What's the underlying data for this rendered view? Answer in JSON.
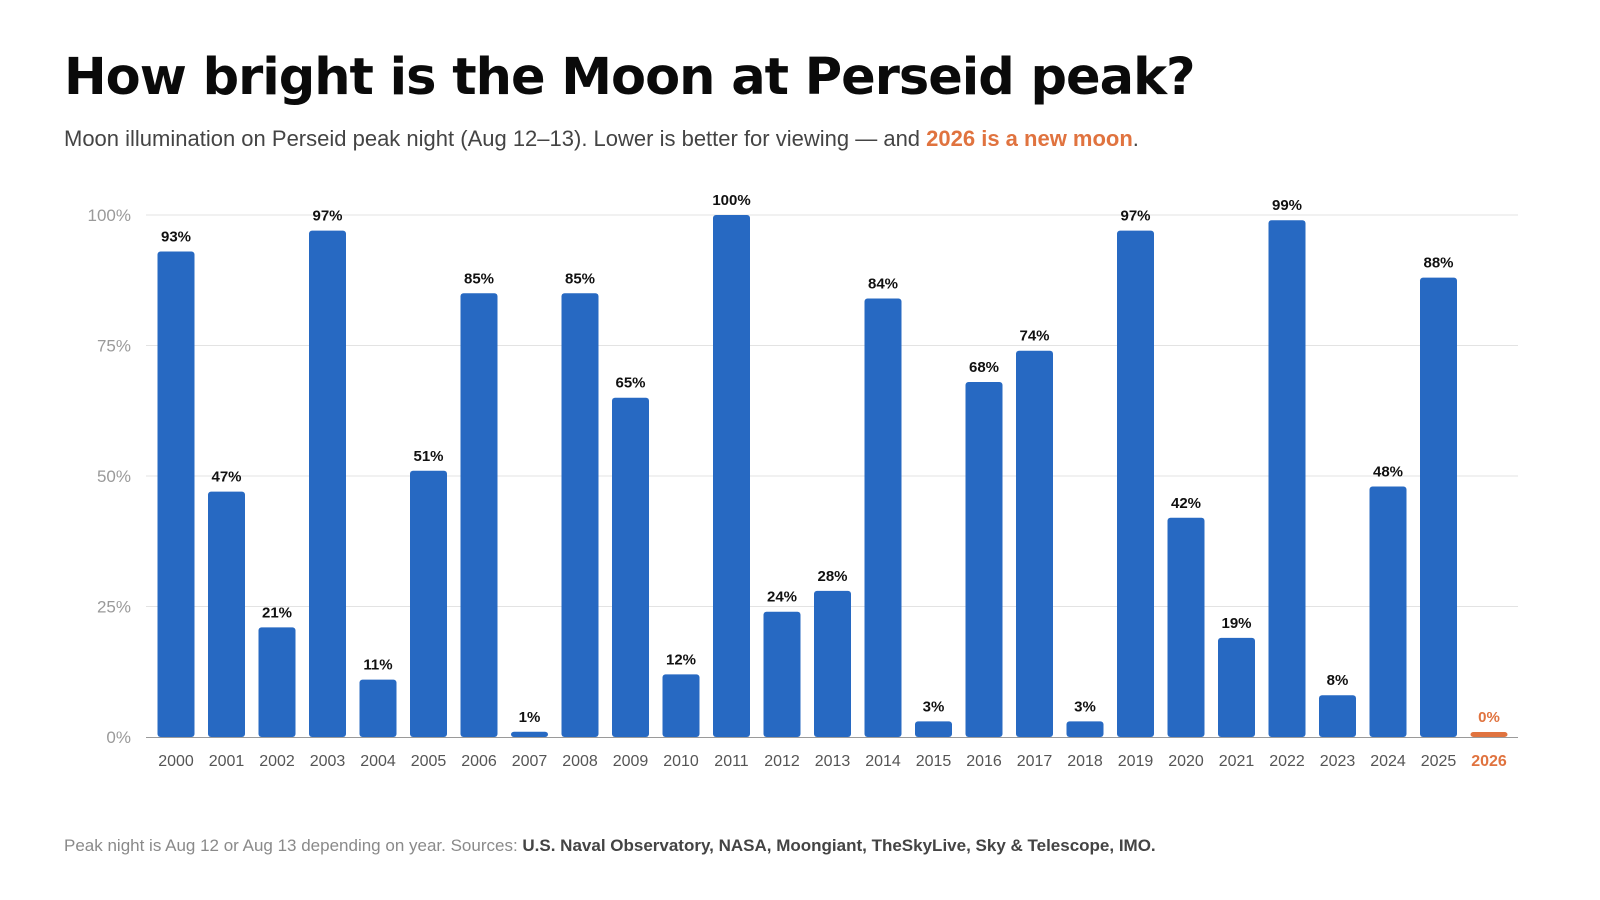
{
  "header": {
    "title": "How bright is the Moon at Perseid peak?",
    "subtitle_pre": "Moon illumination on Perseid peak night (Aug 12–13). Lower is better for viewing — and ",
    "subtitle_highlight": "2026 is a new moon",
    "subtitle_post": "."
  },
  "footer": {
    "note": "Peak night is Aug 12 or Aug 13 depending on year. Sources: ",
    "sources": "U.S. Naval Observatory, NASA, Moongiant, TheSkyLive, Sky & Telescope, IMO."
  },
  "colors": {
    "bar": "#2769C2",
    "highlight": "#E0733F",
    "grid": "#E3E3E3",
    "axis": "#9A9A9A",
    "tick_text": "#9A9A9A",
    "category_text": "#555555",
    "label_text": "#111111"
  },
  "chart_data": {
    "type": "bar",
    "categories": [
      "2000",
      "2001",
      "2002",
      "2003",
      "2004",
      "2005",
      "2006",
      "2007",
      "2008",
      "2009",
      "2010",
      "2011",
      "2012",
      "2013",
      "2014",
      "2015",
      "2016",
      "2017",
      "2018",
      "2019",
      "2020",
      "2021",
      "2022",
      "2023",
      "2024",
      "2025",
      "2026"
    ],
    "values": [
      93,
      47,
      21,
      97,
      11,
      51,
      85,
      1,
      85,
      65,
      12,
      100,
      24,
      28,
      84,
      3,
      68,
      74,
      3,
      97,
      42,
      19,
      99,
      8,
      48,
      88,
      0
    ],
    "data_labels": [
      "93%",
      "47%",
      "21%",
      "97%",
      "11%",
      "51%",
      "85%",
      "1%",
      "85%",
      "65%",
      "12%",
      "100%",
      "24%",
      "28%",
      "84%",
      "3%",
      "68%",
      "74%",
      "3%",
      "97%",
      "42%",
      "19%",
      "99%",
      "8%",
      "48%",
      "88%",
      "0%"
    ],
    "highlight_category": "2026",
    "ylim": [
      0,
      100
    ],
    "yticks": [
      0,
      25,
      50,
      75,
      100
    ],
    "ytick_labels": [
      "0%",
      "25%",
      "50%",
      "75%",
      "100%"
    ],
    "grid": true,
    "xlabel": "",
    "ylabel": ""
  }
}
